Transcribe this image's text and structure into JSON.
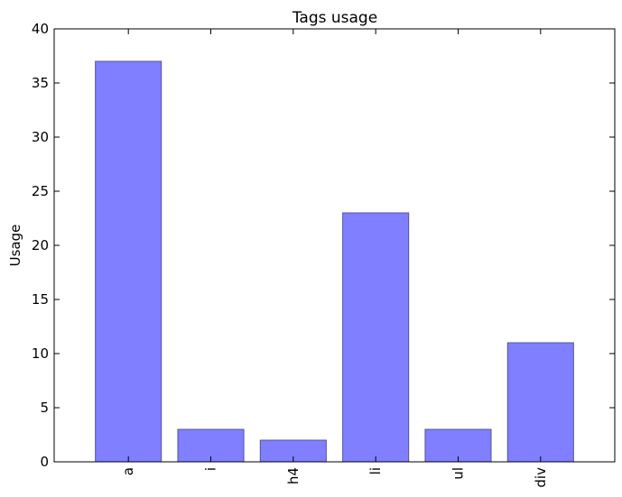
{
  "chart_data": {
    "type": "bar",
    "title": "Tags usage",
    "xlabel": "",
    "ylabel": "Usage",
    "categories": [
      "a",
      "i",
      "h4",
      "li",
      "ul",
      "div"
    ],
    "values": [
      37,
      3,
      2,
      23,
      3,
      11
    ],
    "ylim": [
      0,
      40
    ],
    "yticks": [
      0,
      5,
      10,
      15,
      20,
      25,
      30,
      35,
      40
    ],
    "grid": false,
    "bar_color": "#7f7fff",
    "bar_edge_color": "#545499"
  }
}
